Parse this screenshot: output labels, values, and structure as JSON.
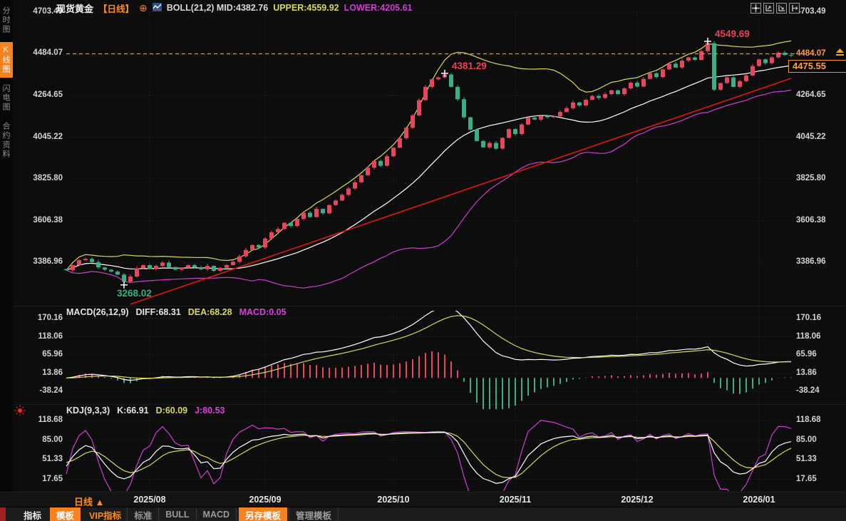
{
  "sidebar": {
    "items": [
      {
        "label": "分时图",
        "name": "time-chart",
        "active": false
      },
      {
        "label": "K线图",
        "name": "kline-chart",
        "active": true
      },
      {
        "label": "闪电图",
        "name": "lightning-chart",
        "active": false
      },
      {
        "label": "合约资料",
        "name": "contract-info",
        "active": false
      }
    ]
  },
  "header": {
    "symbol": "现货黄金",
    "period_tag": "【日线】",
    "boll": "BOLL(21,2) MID:4382.76",
    "upper": "UPPER:4559.92",
    "lower": "LOWER:4205.61"
  },
  "icons": {
    "target_glyph": "⊕",
    "top_right": [
      "crosshair-icon",
      "y-axis-scale-icon",
      "x-axis-scale-icon",
      "exit-chart-icon"
    ]
  },
  "macd_header": {
    "label": "MACD(26,12,9)",
    "diff": "DIFF:68.31",
    "dea": "DEA:68.28",
    "macd": "MACD:0.05"
  },
  "kdj_header": {
    "label": "KDJ(9,3,3)",
    "k": "K:66.91",
    "d": "D:60.09",
    "j": "J:80.53"
  },
  "price_marker": {
    "level_label": "4484.07",
    "last_price": "4475.55"
  },
  "bottom": {
    "period": "日线",
    "period_arrow": "▲",
    "tabs": [
      {
        "label": "指标",
        "name": "indicators",
        "style": "white"
      },
      {
        "label": "模板",
        "name": "templates",
        "style": "orange-bg"
      },
      {
        "label": "VIP指标",
        "name": "vip-indicators",
        "style": "orange-text"
      },
      {
        "label": "标准",
        "name": "standard",
        "style": "gray"
      },
      {
        "label": "BULL",
        "name": "bull",
        "style": "gray"
      },
      {
        "label": "MACD",
        "name": "macd",
        "style": "gray"
      },
      {
        "label": "另存模板",
        "name": "save-template",
        "style": "orange-bg"
      },
      {
        "label": "管理模板",
        "name": "manage-templates",
        "style": "gray"
      }
    ]
  },
  "chart_data": {
    "type": "candlestick",
    "title": "现货黄金 日线",
    "y_ticks_main": [
      "4703.49",
      "4484.07",
      "4264.65",
      "4045.22",
      "3825.80",
      "3606.38",
      "3386.96"
    ],
    "x_labels": [
      "2025/08",
      "2025/09",
      "2025/10",
      "2025/11",
      "2025/12",
      "2026/01"
    ],
    "x_label_indices": [
      13,
      31,
      51,
      70,
      89,
      108
    ],
    "closes": [
      3345,
      3372,
      3398,
      3405,
      3388,
      3360,
      3348,
      3338,
      3322,
      3285,
      3312,
      3355,
      3372,
      3352,
      3368,
      3385,
      3362,
      3348,
      3358,
      3372,
      3360,
      3350,
      3368,
      3342,
      3358,
      3372,
      3390,
      3418,
      3452,
      3478,
      3465,
      3512,
      3545,
      3562,
      3595,
      3578,
      3615,
      3648,
      3625,
      3668,
      3645,
      3688,
      3712,
      3742,
      3775,
      3808,
      3845,
      3885,
      3920,
      3895,
      3945,
      3990,
      4040,
      4095,
      4160,
      4240,
      4310,
      4350,
      4360,
      4375,
      4310,
      4245,
      4150,
      4085,
      4025,
      3992,
      4015,
      3985,
      4042,
      4088,
      4062,
      4112,
      4148,
      4138,
      4158,
      4150,
      4155,
      4178,
      4198,
      4228,
      4212,
      4242,
      4262,
      4252,
      4272,
      4292,
      4272,
      4302,
      4332,
      4312,
      4352,
      4382,
      4362,
      4402,
      4432,
      4412,
      4448,
      4465,
      4452,
      4498,
      4540,
      4295,
      4330,
      4360,
      4310,
      4340,
      4370,
      4420,
      4455,
      4435,
      4465,
      4490,
      4478,
      4475.55
    ],
    "boll": {
      "period": 21,
      "dev": 2,
      "mid": 4382.76,
      "upper": 4559.92,
      "lower": 4205.61
    },
    "annotations": [
      {
        "index": 9,
        "price": 3268.02,
        "label": "3268.02",
        "position": "below",
        "color": "#35b184"
      },
      {
        "index": 59,
        "price": 4381.29,
        "label": "4381.29",
        "position": "above",
        "color": "#ea4158"
      },
      {
        "index": 100,
        "price": 4549.69,
        "label": "4549.69",
        "position": "above",
        "color": "#ea4158"
      }
    ],
    "alert_level": 4484.07,
    "last_price": 4475.55,
    "trendline": {
      "from_index": 10,
      "from_price": 3166,
      "to_index": 113,
      "to_price": 4355
    },
    "macd": {
      "params": [
        26,
        12,
        9
      ],
      "diff": 68.31,
      "dea": 68.28,
      "macd": 0.05,
      "y_ticks": [
        "170.16",
        "118.06",
        "65.96",
        "13.86",
        "-38.24"
      ]
    },
    "kdj": {
      "params": [
        9,
        3,
        3
      ],
      "k": 66.91,
      "d": 60.09,
      "j": 80.53,
      "y_ticks": [
        "118.68",
        "85.00",
        "51.33",
        "17.65"
      ]
    },
    "colors": {
      "up": "#e8455f",
      "down": "#3aae85",
      "boll_mid": "#ffffff",
      "boll_upper": "#d9d957",
      "boll_lower": "#cf3ecf",
      "trend": "#e01616",
      "alert": "#ff8c1a",
      "grid": "#2d2d2d",
      "accent_orange": "#f5821f"
    }
  }
}
